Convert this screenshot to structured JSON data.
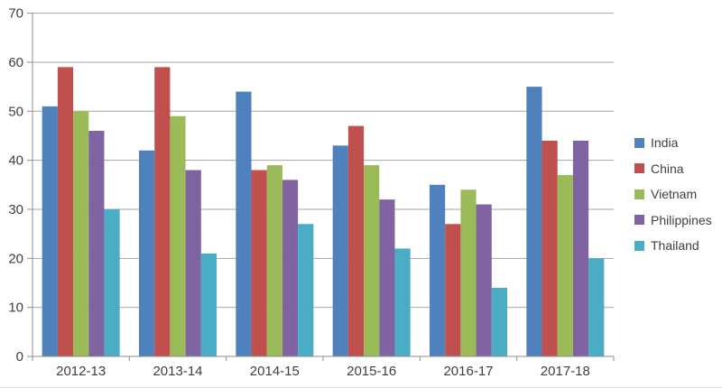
{
  "chart_data": {
    "type": "bar",
    "title": "",
    "xlabel": "",
    "ylabel": "",
    "categories": [
      "2012-13",
      "2013-14",
      "2014-15",
      "2015-16",
      "2016-17",
      "2017-18"
    ],
    "series": [
      {
        "name": "India",
        "color": "#4F81BD",
        "values": [
          51,
          42,
          54,
          43,
          35,
          55
        ]
      },
      {
        "name": "China",
        "color": "#C0504D",
        "values": [
          59,
          59,
          38,
          47,
          27,
          44
        ]
      },
      {
        "name": "Vietnam",
        "color": "#9BBB59",
        "values": [
          50,
          49,
          39,
          39,
          34,
          37
        ]
      },
      {
        "name": "Philippines",
        "color": "#8064A2",
        "values": [
          46,
          38,
          36,
          32,
          31,
          44
        ]
      },
      {
        "name": "Thailand",
        "color": "#4BACC6",
        "values": [
          30,
          21,
          27,
          22,
          14,
          20
        ]
      }
    ],
    "ylim": [
      0,
      70
    ],
    "ytick_step": 10,
    "yticks": [
      "0",
      "10",
      "20",
      "30",
      "40",
      "50",
      "60",
      "70"
    ],
    "grid": "horizontal",
    "legend_position": "right",
    "colors": {
      "gridline": "#A6A6A6",
      "axis": "#8E8E8E",
      "text": "#3F3F3F",
      "background": "#FFFFFF"
    }
  }
}
